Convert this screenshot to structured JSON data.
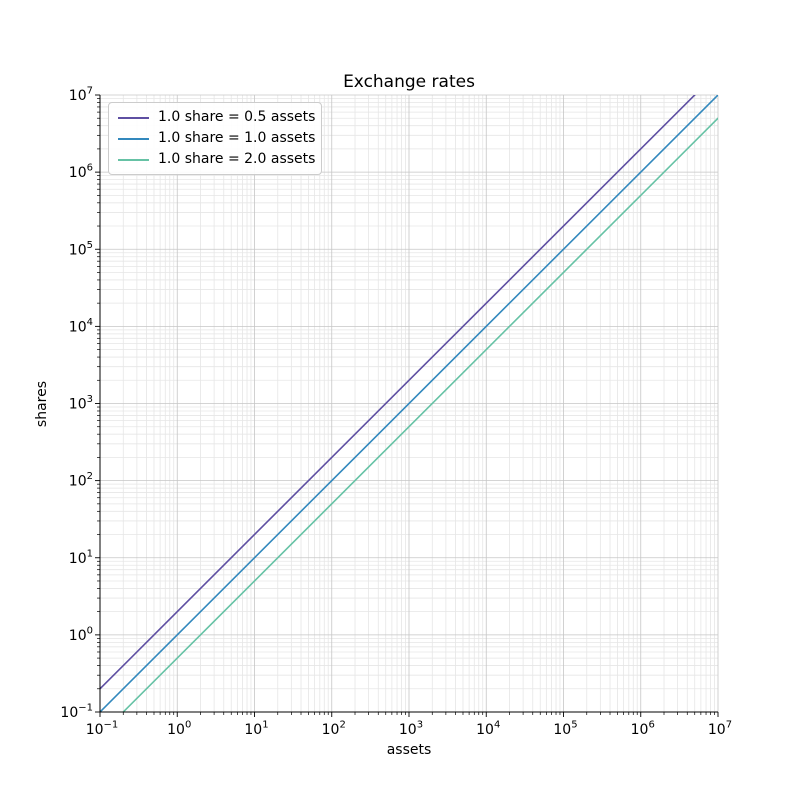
{
  "chart_data": {
    "type": "line",
    "title": "Exchange rates",
    "xlabel": "assets",
    "ylabel": "shares",
    "xscale": "log",
    "yscale": "log",
    "xlim": [
      0.1,
      10000000
    ],
    "ylim": [
      0.1,
      10000000
    ],
    "grid": {
      "major": true,
      "minor": true
    },
    "legend_position": "upper-left",
    "tick_base": "10",
    "x_tick_exponents": [
      -1,
      0,
      1,
      2,
      3,
      4,
      5,
      6,
      7
    ],
    "y_tick_exponents": [
      -1,
      0,
      1,
      2,
      3,
      4,
      5,
      6,
      7
    ],
    "series": [
      {
        "label": "1.0 share = 0.5 assets",
        "color": "#5e4fa2",
        "points": [
          [
            0.1,
            0.2
          ],
          [
            10000000,
            20000000
          ]
        ]
      },
      {
        "label": "1.0 share = 1.0 assets",
        "color": "#3288bd",
        "points": [
          [
            0.1,
            0.1
          ],
          [
            10000000,
            10000000
          ]
        ]
      },
      {
        "label": "1.0 share = 2.0 assets",
        "color": "#66c2a5",
        "points": [
          [
            0.1,
            0.05
          ],
          [
            10000000,
            5000000
          ]
        ]
      }
    ],
    "colors": {
      "major_grid": "#c6c6c6",
      "minor_grid": "#e6e6e6",
      "spine": "#000000",
      "text": "#000000"
    }
  }
}
